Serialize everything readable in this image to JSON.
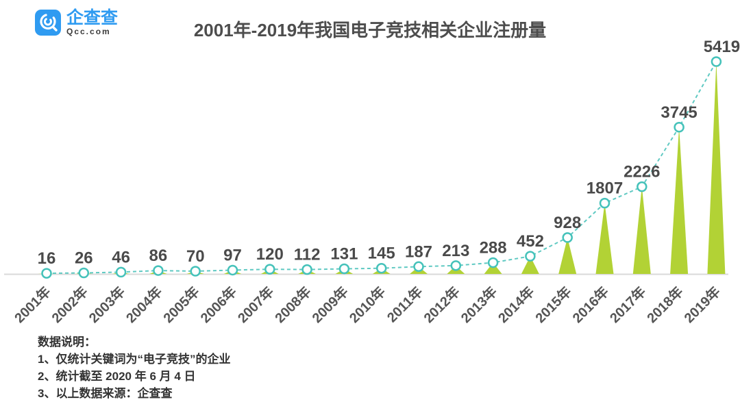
{
  "logo": {
    "brand": "企查查",
    "domain": "Qcc.com",
    "brand_color": "#2f9bf1"
  },
  "header": {
    "title": "2001年-2019年我国电子竞技相关企业注册量"
  },
  "chart_data": {
    "type": "line",
    "subtype": "dashed line with circle markers over cone-shaped (triangle) bars",
    "title": "2001年-2019年我国电子竞技相关企业注册量",
    "categories": [
      "2001年",
      "2002年",
      "2003年",
      "2004年",
      "2005年",
      "2006年",
      "2007年",
      "2008年",
      "2009年",
      "2010年",
      "2011年",
      "2012年",
      "2013年",
      "2014年",
      "2015年",
      "2016年",
      "2017年",
      "2018年",
      "2019年"
    ],
    "values": [
      16,
      26,
      46,
      86,
      70,
      97,
      120,
      112,
      131,
      145,
      187,
      213,
      288,
      452,
      928,
      1807,
      2226,
      3745,
      5419
    ],
    "xlabel": "",
    "ylabel": "",
    "ylim": [
      0,
      5419
    ],
    "grid": false,
    "legend": "none",
    "data_labels": "above each marker",
    "colors": {
      "cone_fill": "#b2d235",
      "line": "#5fc9c2",
      "marker_stroke": "#45c2ba",
      "marker_fill": "#ffffff",
      "value_label": "#4a4a4a",
      "axis_label": "#555555",
      "baseline": "#d9d9d9"
    }
  },
  "footer": {
    "heading": "数据说明：",
    "notes": [
      "1、仅统计关键词为“电子竞技”的企业",
      "2、统计截至 2020 年 6 月 4 日",
      "3、以上数据来源：企查查"
    ]
  }
}
